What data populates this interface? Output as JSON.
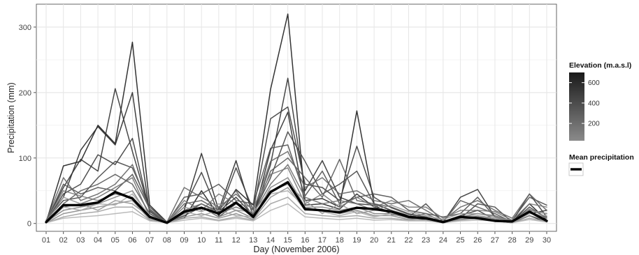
{
  "chart_data": {
    "type": "line",
    "title": "",
    "xlabel": "Day (November 2006)",
    "ylabel": "Precipitation (mm)",
    "x": [
      "01",
      "02",
      "03",
      "04",
      "05",
      "06",
      "07",
      "08",
      "09",
      "10",
      "11",
      "12",
      "13",
      "14",
      "15",
      "16",
      "17",
      "18",
      "19",
      "20",
      "21",
      "22",
      "23",
      "24",
      "25",
      "26",
      "27",
      "28",
      "29",
      "30"
    ],
    "ylim": [
      -12,
      335
    ],
    "yticks": [
      0,
      100,
      200,
      300
    ],
    "grid": true,
    "series": [
      {
        "color": "#1e1e1e",
        "values": [
          2,
          88,
          95,
          150,
          122,
          277,
          28,
          2,
          8,
          50,
          12,
          52,
          28,
          205,
          320,
          35,
          38,
          25,
          172,
          30,
          20,
          12,
          8,
          3,
          10,
          10,
          8,
          2,
          30,
          5
        ]
      },
      {
        "color": "#2a2a2a",
        "values": [
          4,
          40,
          112,
          148,
          120,
          200,
          15,
          1,
          20,
          107,
          20,
          96,
          10,
          112,
          170,
          28,
          30,
          22,
          45,
          25,
          18,
          8,
          6,
          2,
          6,
          8,
          4,
          1,
          12,
          2
        ]
      },
      {
        "color": "#333333",
        "values": [
          3,
          55,
          98,
          80,
          206,
          110,
          20,
          2,
          15,
          30,
          18,
          40,
          12,
          90,
          222,
          50,
          96,
          40,
          30,
          28,
          14,
          10,
          7,
          2,
          40,
          52,
          10,
          2,
          15,
          20
        ]
      },
      {
        "color": "#3c3c3c",
        "values": [
          2,
          45,
          60,
          105,
          90,
          130,
          18,
          1,
          25,
          78,
          15,
          85,
          20,
          160,
          178,
          60,
          55,
          35,
          118,
          40,
          24,
          14,
          10,
          3,
          12,
          20,
          6,
          3,
          45,
          10
        ]
      },
      {
        "color": "#464646",
        "values": [
          5,
          35,
          40,
          70,
          95,
          85,
          25,
          2,
          12,
          25,
          10,
          30,
          15,
          70,
          140,
          95,
          45,
          60,
          80,
          30,
          20,
          10,
          30,
          2,
          8,
          30,
          25,
          2,
          25,
          8
        ]
      },
      {
        "color": "#505050",
        "values": [
          3,
          60,
          45,
          55,
          50,
          75,
          22,
          1,
          40,
          45,
          60,
          35,
          30,
          115,
          120,
          42,
          80,
          30,
          40,
          45,
          40,
          20,
          15,
          10,
          15,
          40,
          10,
          5,
          40,
          28
        ]
      },
      {
        "color": "#5a5a5a",
        "values": [
          2,
          30,
          50,
          60,
          75,
          60,
          15,
          1,
          30,
          35,
          20,
          50,
          10,
          80,
          100,
          70,
          40,
          98,
          35,
          30,
          25,
          15,
          10,
          2,
          35,
          25,
          15,
          2,
          20,
          15
        ]
      },
      {
        "color": "#646464",
        "values": [
          4,
          70,
          35,
          45,
          60,
          90,
          20,
          2,
          55,
          40,
          25,
          45,
          20,
          95,
          110,
          55,
          70,
          45,
          50,
          35,
          30,
          35,
          20,
          5,
          25,
          35,
          20,
          8,
          45,
          20
        ]
      },
      {
        "color": "#6e6e6e",
        "values": [
          1,
          25,
          30,
          40,
          55,
          70,
          10,
          1,
          20,
          30,
          15,
          25,
          15,
          60,
          90,
          40,
          30,
          35,
          30,
          20,
          20,
          10,
          15,
          2,
          10,
          15,
          12,
          3,
          22,
          10
        ]
      },
      {
        "color": "#787878",
        "values": [
          3,
          50,
          42,
          35,
          45,
          40,
          12,
          2,
          35,
          20,
          45,
          30,
          25,
          75,
          85,
          30,
          45,
          25,
          40,
          25,
          35,
          25,
          25,
          8,
          20,
          20,
          18,
          5,
          30,
          25
        ]
      },
      {
        "color": "#828282",
        "values": [
          2,
          20,
          25,
          30,
          40,
          50,
          8,
          1,
          15,
          25,
          10,
          20,
          8,
          55,
          70,
          25,
          25,
          20,
          25,
          15,
          15,
          8,
          10,
          2,
          8,
          12,
          8,
          2,
          18,
          8
        ]
      },
      {
        "color": "#8c8c8c",
        "values": [
          1,
          15,
          20,
          25,
          30,
          35,
          6,
          1,
          10,
          15,
          8,
          15,
          6,
          40,
          55,
          20,
          20,
          15,
          20,
          12,
          12,
          6,
          8,
          1,
          6,
          10,
          6,
          1,
          12,
          5
        ]
      },
      {
        "color": "#969696",
        "values": [
          2,
          40,
          30,
          20,
          35,
          30,
          10,
          1,
          25,
          18,
          30,
          20,
          18,
          50,
          60,
          35,
          15,
          30,
          15,
          20,
          28,
          18,
          12,
          6,
          15,
          15,
          10,
          4,
          20,
          15
        ]
      },
      {
        "color": "#a0a0a0",
        "values": [
          1,
          10,
          15,
          18,
          25,
          25,
          5,
          1,
          8,
          10,
          5,
          10,
          5,
          30,
          40,
          15,
          12,
          10,
          12,
          8,
          8,
          5,
          5,
          1,
          5,
          8,
          5,
          1,
          8,
          3
        ]
      },
      {
        "color": "#aaaaaa",
        "values": [
          2,
          25,
          20,
          30,
          28,
          45,
          12,
          1,
          18,
          12,
          20,
          12,
          10,
          45,
          50,
          25,
          18,
          12,
          18,
          10,
          15,
          12,
          8,
          3,
          10,
          12,
          8,
          2,
          15,
          12
        ]
      },
      {
        "color": "#b4b4b4",
        "values": [
          1,
          8,
          10,
          12,
          15,
          18,
          4,
          1,
          5,
          8,
          4,
          8,
          4,
          20,
          30,
          10,
          8,
          6,
          8,
          5,
          6,
          4,
          4,
          1,
          4,
          5,
          4,
          1,
          6,
          2
        ]
      },
      {
        "name": "Mean precipitation",
        "color": "#000000",
        "width": 3.4,
        "values": [
          2,
          28,
          28,
          32,
          48,
          38,
          10,
          1,
          18,
          24,
          15,
          32,
          10,
          48,
          63,
          22,
          20,
          17,
          24,
          22,
          18,
          10,
          8,
          2,
          10,
          8,
          4,
          3,
          18,
          4
        ]
      }
    ]
  },
  "legend": {
    "elevation_title": "Elevation (m.a.s.l)",
    "elevation_ticks": [
      {
        "value": 600,
        "label": "600"
      },
      {
        "value": 400,
        "label": "400"
      },
      {
        "value": 200,
        "label": "200"
      }
    ],
    "elevation_range": [
      30,
      700
    ],
    "gradient_colors": [
      "#1a1a1a",
      "#8a8a8a"
    ],
    "mean_title": "Mean precipitation"
  }
}
